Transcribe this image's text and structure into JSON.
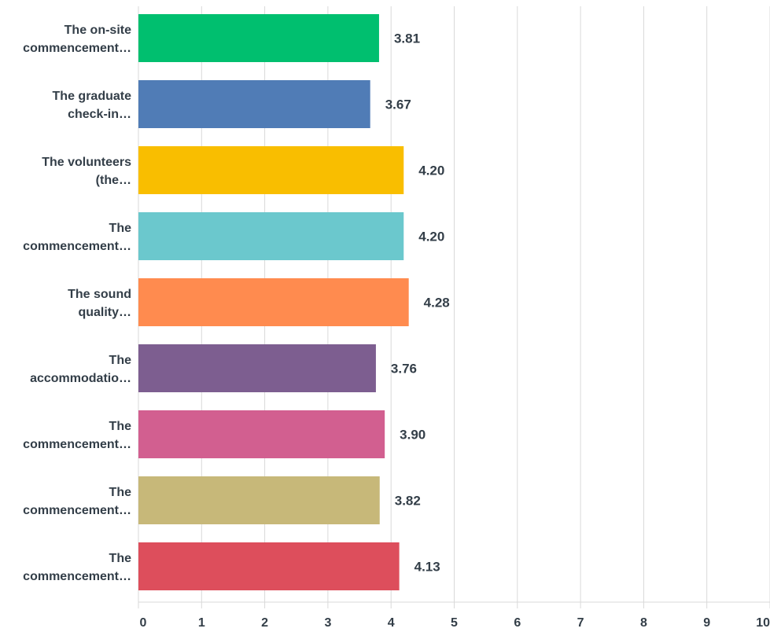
{
  "chart_data": {
    "type": "bar",
    "orientation": "horizontal",
    "categories": [
      [
        "The on-site",
        "commencement…"
      ],
      [
        "The graduate",
        "check-in…"
      ],
      [
        "The volunteers",
        "(the…"
      ],
      [
        "The",
        "commencement…"
      ],
      [
        "The sound",
        "quality…"
      ],
      [
        "The",
        "accommodatio…"
      ],
      [
        "The",
        "commencement…"
      ],
      [
        "The",
        "commencement…"
      ],
      [
        "The",
        "commencement…"
      ]
    ],
    "values": [
      3.81,
      3.67,
      4.2,
      4.2,
      4.28,
      3.76,
      3.9,
      3.82,
      4.13
    ],
    "value_labels": [
      "3.81",
      "3.67",
      "4.20",
      "4.20",
      "4.28",
      "3.76",
      "3.90",
      "3.82",
      "4.13"
    ],
    "colors": [
      "#00bf6f",
      "#507cb6",
      "#f9be00",
      "#6bc8cd",
      "#ff8b4f",
      "#7d5e90",
      "#d25f90",
      "#c7b879",
      "#dd4e5c"
    ],
    "xlim": [
      0,
      10
    ],
    "x_ticks": [
      "0",
      "1",
      "2",
      "3",
      "4",
      "5",
      "6",
      "7",
      "8",
      "9",
      "10"
    ],
    "grid": true,
    "title": "",
    "xlabel": "",
    "ylabel": ""
  }
}
